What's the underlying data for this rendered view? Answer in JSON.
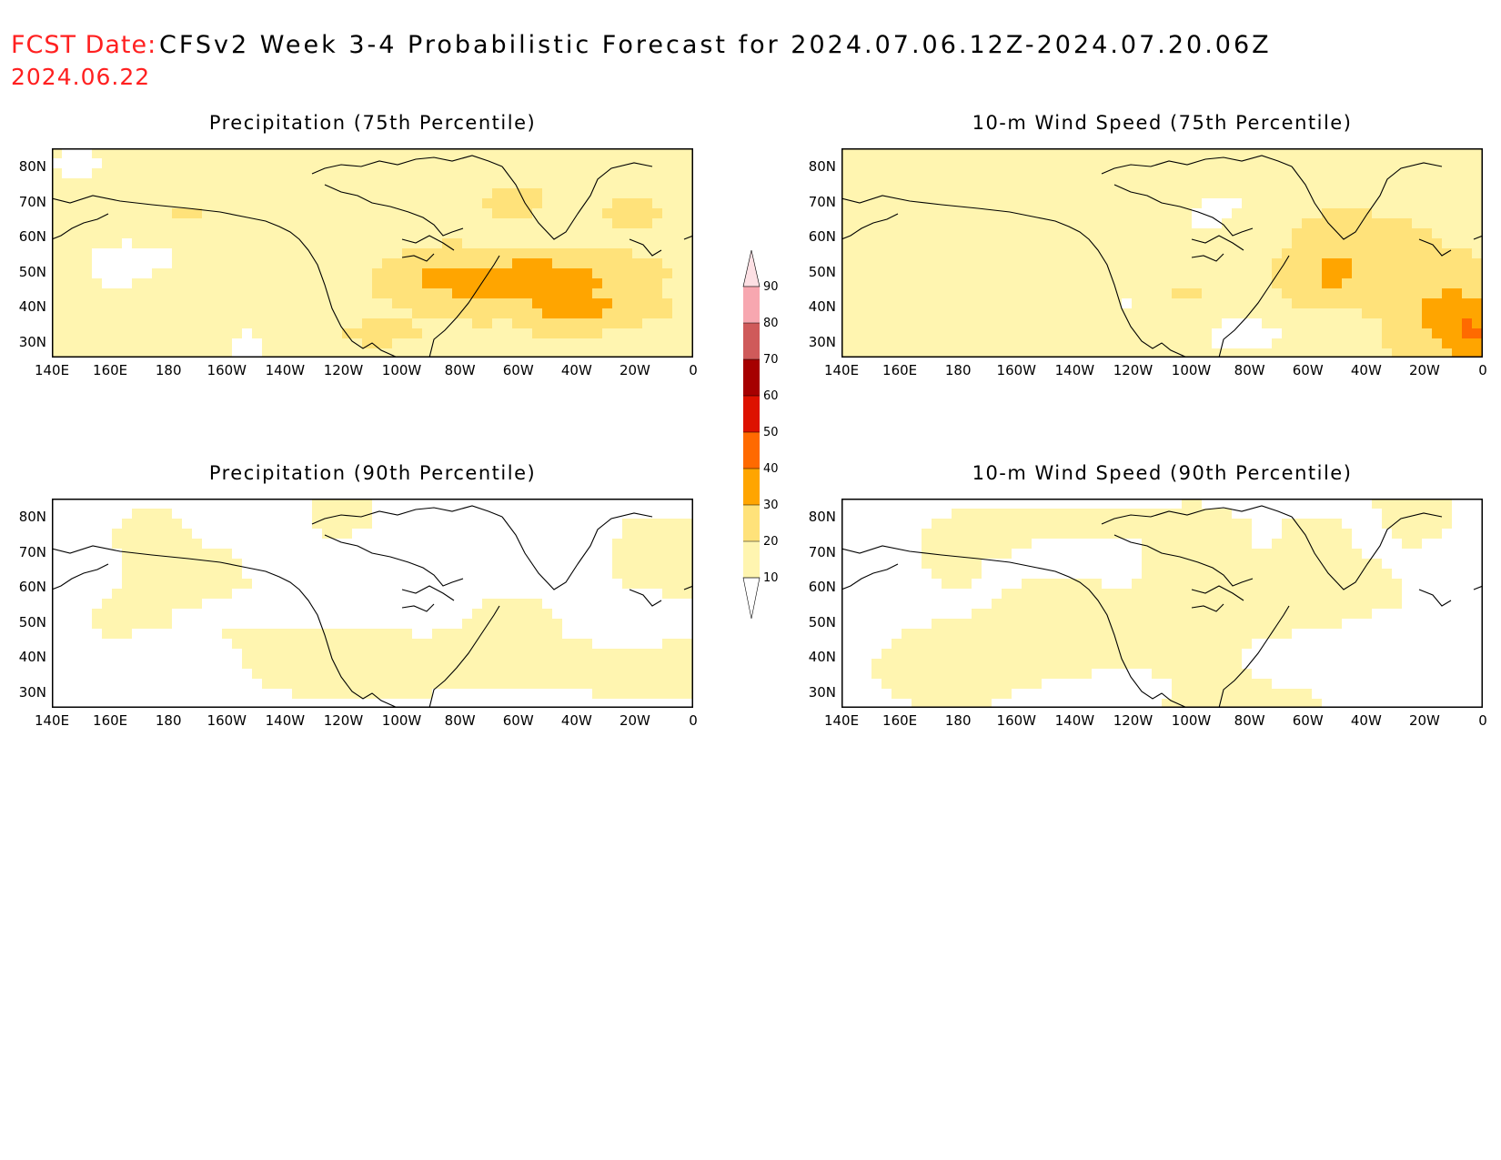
{
  "header": {
    "label": "FCST Date:",
    "title": "CFSv2 Week 3-4 Probabilistic Forecast for 2024.07.06.12Z-2024.07.20.06Z",
    "fcst_date": "2024.06.22"
  },
  "axes": {
    "lon_labels": [
      "140E",
      "160E",
      "180",
      "160W",
      "140W",
      "120W",
      "100W",
      "80W",
      "60W",
      "40W",
      "20W",
      "0"
    ],
    "lat_labels": [
      "80N",
      "70N",
      "60N",
      "50N",
      "40N",
      "30N"
    ]
  },
  "colorbar": {
    "levels": [
      "10",
      "20",
      "30",
      "40",
      "50",
      "60",
      "70",
      "80",
      "90"
    ],
    "colors": [
      "#ffffff",
      "#fff5b0",
      "#ffe27a",
      "#ffa500",
      "#ff6a00",
      "#dd1200",
      "#a60000",
      "#cf5a5a",
      "#f7a7b0",
      "#fde0e4"
    ]
  },
  "panels": [
    {
      "id": "precip-75",
      "title": "Precipitation (75th Percentile)",
      "intensity": 1.0,
      "bias": 0.6,
      "seed": 11
    },
    {
      "id": "wind-75",
      "title": "10-m Wind Speed (75th Percentile)",
      "intensity": 1.0,
      "bias": 0.6,
      "seed": 37
    },
    {
      "id": "precip-90",
      "title": "Precipitation (90th Percentile)",
      "intensity": 0.55,
      "bias": -0.15,
      "seed": 73
    },
    {
      "id": "wind-90",
      "title": "10-m Wind Speed (90th Percentile)",
      "intensity": 0.55,
      "bias": -0.1,
      "seed": 97
    }
  ]
}
